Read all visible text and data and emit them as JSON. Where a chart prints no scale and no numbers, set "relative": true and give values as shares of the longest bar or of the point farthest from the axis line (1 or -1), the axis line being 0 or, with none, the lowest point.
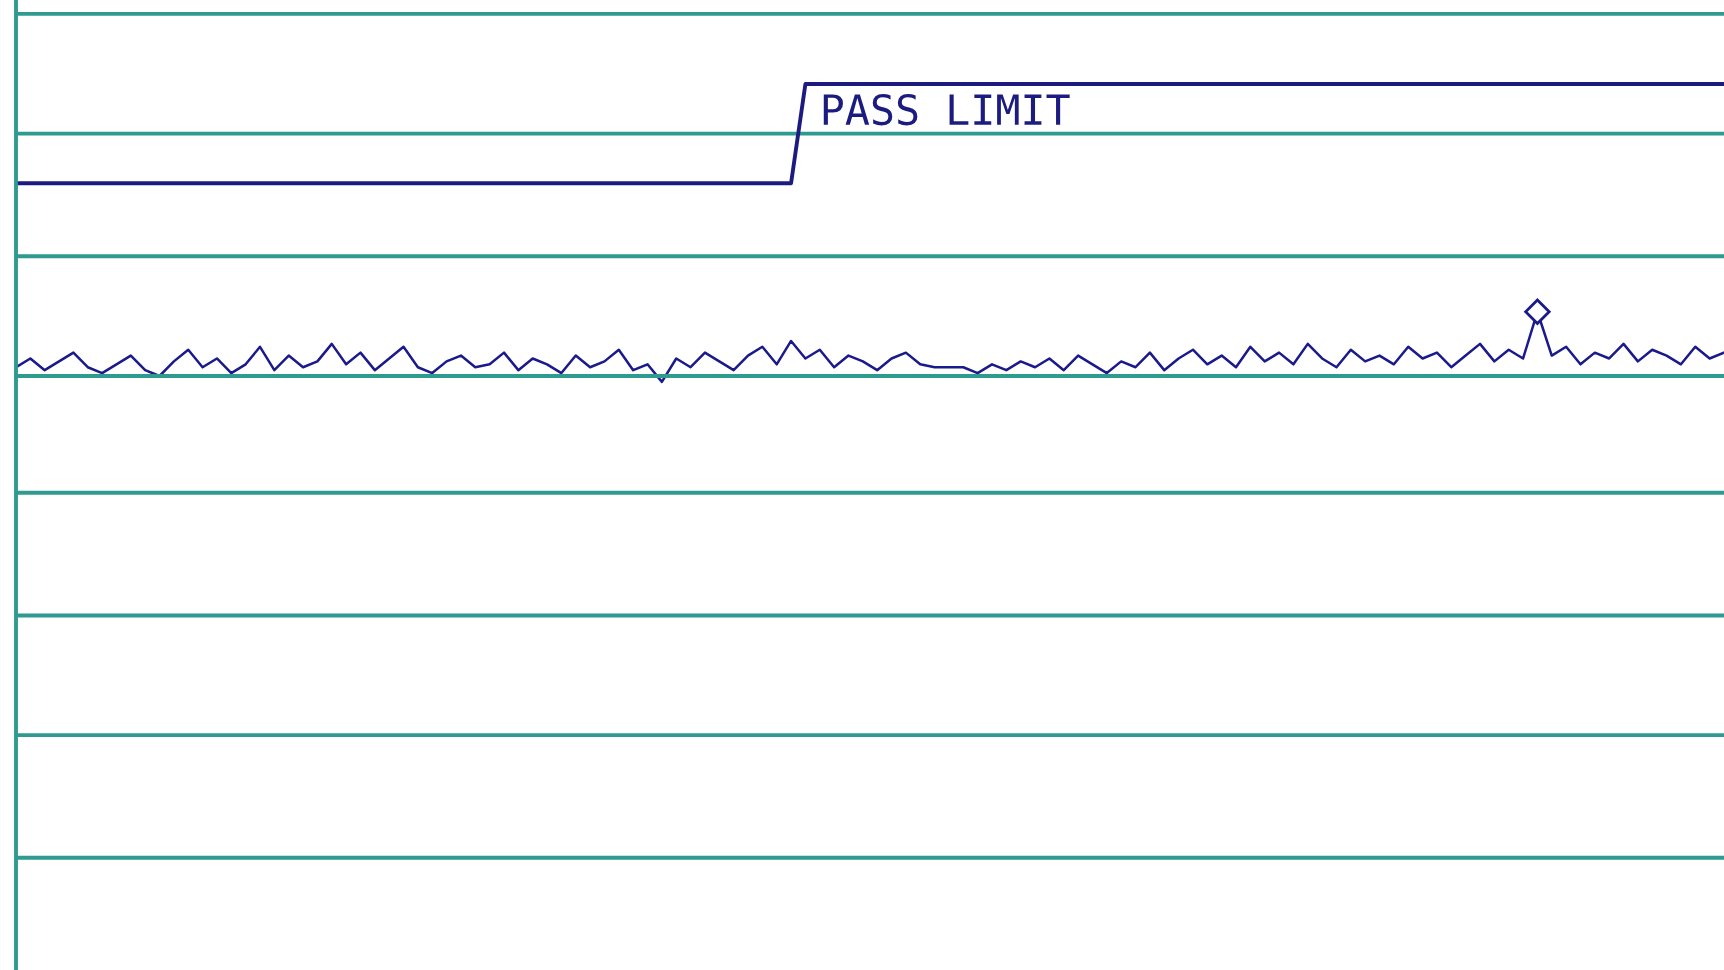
{
  "chart_data": {
    "type": "line",
    "relative": true,
    "annotations": [
      "PASS LIMIT"
    ],
    "ref_lines": [
      {
        "axis": "y",
        "value": 1.24,
        "color": "#2e9a90"
      },
      {
        "axis": "y",
        "value": 0.83,
        "color": "#2e9a90"
      },
      {
        "axis": "y",
        "value": 0.41,
        "color": "#2e9a90"
      },
      {
        "axis": "y",
        "value": 0,
        "color": "#2e9a90"
      },
      {
        "axis": "y",
        "value": -0.4,
        "color": "#2e9a90"
      },
      {
        "axis": "y",
        "value": -0.82,
        "color": "#2e9a90"
      },
      {
        "axis": "y",
        "value": -1.23,
        "color": "#2e9a90"
      },
      {
        "axis": "y",
        "value": -1.65,
        "color": "#2e9a90"
      }
    ],
    "categories": [
      null,
      null,
      null,
      null,
      null,
      null,
      null,
      null,
      null,
      null,
      null,
      null,
      null,
      null,
      null,
      null,
      null,
      null,
      null,
      null,
      null,
      null,
      null,
      null,
      null,
      null,
      null,
      null,
      null,
      null,
      null,
      null,
      null,
      null,
      null,
      null,
      null,
      null,
      null,
      null,
      null,
      null,
      null,
      null,
      null,
      null,
      null,
      null,
      null,
      null,
      null,
      null,
      null,
      null,
      null,
      null,
      null,
      null,
      null,
      null,
      null,
      null,
      null,
      null,
      null,
      null,
      null,
      null,
      null,
      null,
      null,
      null,
      null,
      null,
      null,
      null,
      null,
      null,
      null,
      null,
      null,
      null,
      null,
      null,
      null,
      null,
      null,
      null,
      null,
      null,
      null,
      null,
      null,
      null,
      null,
      null,
      null,
      null,
      null,
      null,
      null,
      null,
      null,
      null,
      null,
      null,
      null,
      null,
      null,
      null,
      null,
      null,
      null,
      null,
      null,
      null,
      null,
      null,
      null,
      null
    ],
    "series": [
      {
        "color": "#1c1c80",
        "values": [
          0.66,
          0.66,
          0.66,
          0.66,
          0.66,
          0.66,
          0.66,
          0.66,
          0.66,
          0.66,
          0.66,
          0.66,
          0.66,
          0.66,
          0.66,
          0.66,
          0.66,
          0.66,
          0.66,
          0.66,
          0.66,
          0.66,
          0.66,
          0.66,
          0.66,
          0.66,
          0.66,
          0.66,
          0.66,
          0.66,
          0.66,
          0.66,
          0.66,
          0.66,
          0.66,
          0.66,
          0.66,
          0.66,
          0.66,
          0.66,
          0.66,
          0.66,
          0.66,
          0.66,
          0.66,
          0.66,
          0.66,
          0.66,
          0.66,
          0.66,
          0.66,
          0.66,
          0.66,
          0.66,
          0.66,
          1,
          1,
          1,
          1,
          1,
          1,
          1,
          1,
          1,
          1,
          1,
          1,
          1,
          1,
          1,
          1,
          1,
          1,
          1,
          1,
          1,
          1,
          1,
          1,
          1,
          1,
          1,
          1,
          1,
          1,
          1,
          1,
          1,
          1,
          1,
          1,
          1,
          1,
          1,
          1,
          1,
          1,
          1,
          1,
          1,
          1,
          1,
          1,
          1,
          1,
          1,
          1,
          1,
          1,
          1,
          1,
          1,
          1,
          1,
          1,
          1,
          1,
          1,
          1,
          1
        ]
      },
      {
        "color": "#1a1a8c",
        "values": [
          0.03,
          0.06,
          0.02,
          0.05,
          0.08,
          0.03,
          0.01,
          0.04,
          0.07,
          0.02,
          0.0,
          0.05,
          0.09,
          0.03,
          0.06,
          0.01,
          0.04,
          0.1,
          0.02,
          0.07,
          0.03,
          0.05,
          0.11,
          0.04,
          0.08,
          0.02,
          0.06,
          0.1,
          0.03,
          0.01,
          0.05,
          0.07,
          0.03,
          0.04,
          0.08,
          0.02,
          0.06,
          0.04,
          0.01,
          0.07,
          0.03,
          0.05,
          0.09,
          0.02,
          0.04,
          -0.02,
          0.06,
          0.03,
          0.08,
          0.05,
          0.02,
          0.07,
          0.1,
          0.04,
          0.12,
          0.06,
          0.09,
          0.03,
          0.07,
          0.05,
          0.02,
          0.06,
          0.08,
          0.04,
          0.03,
          0.03,
          0.03,
          0.01,
          0.04,
          0.02,
          0.05,
          0.03,
          0.06,
          0.02,
          0.07,
          0.04,
          0.01,
          0.05,
          0.03,
          0.08,
          0.02,
          0.06,
          0.09,
          0.04,
          0.07,
          0.03,
          0.1,
          0.05,
          0.08,
          0.04,
          0.11,
          0.06,
          0.03,
          0.09,
          0.05,
          0.07,
          0.04,
          0.1,
          0.06,
          0.08,
          0.03,
          0.07,
          0.11,
          0.05,
          0.09,
          0.06,
          0.22,
          0.07,
          0.1,
          0.04,
          0.08,
          0.06,
          0.11,
          0.05,
          0.09,
          0.07,
          0.04,
          0.1,
          0.06,
          0.08
        ]
      }
    ]
  }
}
